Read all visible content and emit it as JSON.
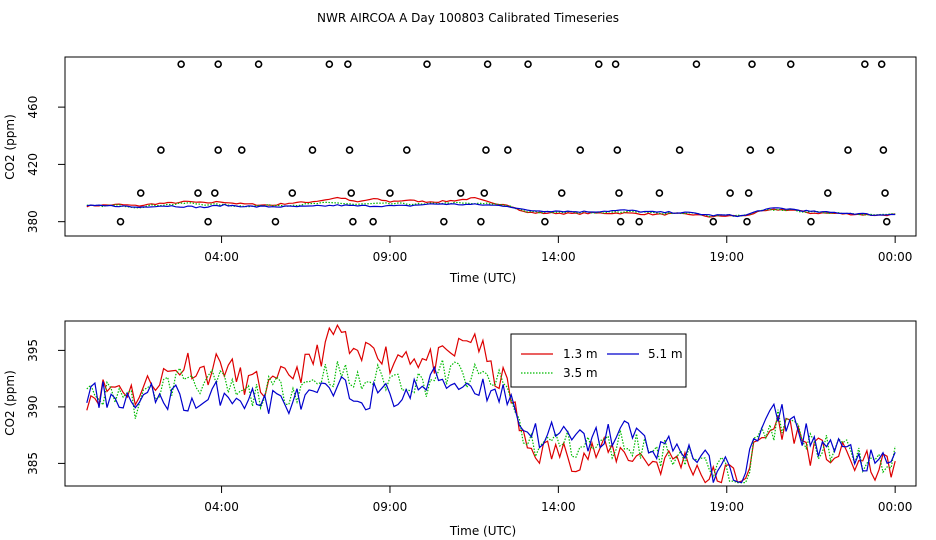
{
  "title": "NWR AIRCOA A  Day 100803  Calibrated Timeseries",
  "colors": {
    "s1": "#dd0000",
    "s2": "#00bb00",
    "s3": "#0000cc"
  },
  "chart_data": [
    {
      "type": "scatter+line",
      "name": "top",
      "xlabel": "Time (UTC)",
      "ylabel": "CO2 (ppm)",
      "x_range_hours": [
        -0.5,
        24.5
      ],
      "ylim": [
        370,
        495
      ],
      "xticks": [
        {
          "h": 4,
          "label": "04:00"
        },
        {
          "h": 9,
          "label": "09:00"
        },
        {
          "h": 14,
          "label": "14:00"
        },
        {
          "h": 19,
          "label": "19:00"
        },
        {
          "h": 24,
          "label": "00:00"
        }
      ],
      "yticks": [
        {
          "v": 380,
          "label": "380"
        },
        {
          "v": 420,
          "label": "420"
        },
        {
          "v": 460,
          "label": "460"
        }
      ],
      "points": [
        [
          1.0,
          380
        ],
        [
          1.6,
          400
        ],
        [
          2.2,
          430
        ],
        [
          2.8,
          490
        ],
        [
          3.3,
          400
        ],
        [
          3.6,
          380
        ],
        [
          3.8,
          400
        ],
        [
          3.9,
          430
        ],
        [
          3.9,
          490
        ],
        [
          4.6,
          430
        ],
        [
          5.1,
          490
        ],
        [
          5.6,
          380
        ],
        [
          6.1,
          400
        ],
        [
          6.7,
          430
        ],
        [
          7.2,
          490
        ],
        [
          7.75,
          490
        ],
        [
          7.8,
          430
        ],
        [
          7.85,
          400
        ],
        [
          7.9,
          380
        ],
        [
          8.5,
          380
        ],
        [
          9.0,
          400
        ],
        [
          9.5,
          430
        ],
        [
          10.1,
          490
        ],
        [
          10.6,
          380
        ],
        [
          11.1,
          400
        ],
        [
          11.7,
          380
        ],
        [
          11.8,
          400
        ],
        [
          11.85,
          430
        ],
        [
          11.9,
          490
        ],
        [
          12.5,
          430
        ],
        [
          13.1,
          490
        ],
        [
          13.6,
          380
        ],
        [
          14.1,
          400
        ],
        [
          14.65,
          430
        ],
        [
          15.2,
          490
        ],
        [
          15.7,
          490
        ],
        [
          15.75,
          430
        ],
        [
          15.8,
          400
        ],
        [
          15.85,
          380
        ],
        [
          16.4,
          380
        ],
        [
          17.0,
          400
        ],
        [
          17.6,
          430
        ],
        [
          18.1,
          490
        ],
        [
          18.6,
          380
        ],
        [
          19.1,
          400
        ],
        [
          19.6,
          380
        ],
        [
          19.65,
          400
        ],
        [
          19.7,
          430
        ],
        [
          19.75,
          490
        ],
        [
          20.3,
          430
        ],
        [
          20.9,
          490
        ],
        [
          21.5,
          380
        ],
        [
          22.0,
          400
        ],
        [
          22.6,
          430
        ],
        [
          23.1,
          490
        ],
        [
          23.6,
          490
        ],
        [
          23.65,
          430
        ],
        [
          23.7,
          400
        ],
        [
          23.75,
          380
        ]
      ]
    },
    {
      "type": "line",
      "name": "bottom",
      "xlabel": "Time (UTC)",
      "ylabel": "CO2 (ppm)",
      "x_range_hours": [
        -0.5,
        24.5
      ],
      "ylim": [
        383,
        397.6
      ],
      "xticks": [
        {
          "h": 4,
          "label": "04:00"
        },
        {
          "h": 9,
          "label": "09:00"
        },
        {
          "h": 14,
          "label": "14:00"
        },
        {
          "h": 19,
          "label": "19:00"
        },
        {
          "h": 24,
          "label": "00:00"
        }
      ],
      "yticks": [
        {
          "v": 385,
          "label": "385"
        },
        {
          "v": 390,
          "label": "390"
        },
        {
          "v": 395,
          "label": "395"
        }
      ],
      "legend": {
        "placement": "top-center",
        "entries": [
          "1.3 m",
          "3.5 m",
          "5.1 m"
        ]
      },
      "series": [
        {
          "name": "1.3 m",
          "color": "#dd0000",
          "anchors": [
            [
              0,
              391
            ],
            [
              0.5,
              391.5
            ],
            [
              1,
              392
            ],
            [
              1.5,
              391
            ],
            [
              2,
              392.5
            ],
            [
              2.5,
              393
            ],
            [
              3,
              394
            ],
            [
              3.5,
              393
            ],
            [
              4,
              394
            ],
            [
              4.5,
              392.5
            ],
            [
              5,
              392
            ],
            [
              5.5,
              391.5
            ],
            [
              6,
              393
            ],
            [
              6.5,
              393.5
            ],
            [
              7,
              395
            ],
            [
              7.5,
              397
            ],
            [
              8,
              393.5
            ],
            [
              8.5,
              396
            ],
            [
              9,
              394
            ],
            [
              9.5,
              395
            ],
            [
              10,
              394
            ],
            [
              10.5,
              394
            ],
            [
              11,
              395
            ],
            [
              11.5,
              396.5
            ],
            [
              12,
              393
            ],
            [
              12.5,
              392
            ],
            [
              13,
              386.5
            ],
            [
              13.5,
              386
            ],
            [
              14,
              386
            ],
            [
              14.5,
              385.5
            ],
            [
              15,
              386
            ],
            [
              15.5,
              386
            ],
            [
              16,
              386
            ],
            [
              16.5,
              385.5
            ],
            [
              17,
              385
            ],
            [
              17.5,
              385.5
            ],
            [
              18,
              385
            ],
            [
              18.5,
              383.5
            ],
            [
              19,
              384
            ],
            [
              19.5,
              384
            ],
            [
              20,
              387
            ],
            [
              20.5,
              388.5
            ],
            [
              21,
              388
            ],
            [
              21.5,
              386
            ],
            [
              22,
              386
            ],
            [
              22.5,
              385.5
            ],
            [
              23,
              385
            ],
            [
              23.5,
              384.5
            ],
            [
              24,
              385
            ]
          ]
        },
        {
          "name": "3.5 m",
          "color": "#00bb00",
          "anchors": [
            [
              0,
              391
            ],
            [
              0.5,
              391
            ],
            [
              1,
              391.5
            ],
            [
              1.5,
              390
            ],
            [
              2,
              391.5
            ],
            [
              2.5,
              392
            ],
            [
              3,
              393
            ],
            [
              3.5,
              392
            ],
            [
              4,
              392
            ],
            [
              4.5,
              391
            ],
            [
              5,
              391
            ],
            [
              5.5,
              391.5
            ],
            [
              6,
              391.5
            ],
            [
              6.5,
              392
            ],
            [
              7,
              393
            ],
            [
              7.5,
              393
            ],
            [
              8,
              392
            ],
            [
              8.5,
              392.5
            ],
            [
              9,
              392.5
            ],
            [
              9.5,
              392.5
            ],
            [
              10,
              392
            ],
            [
              10.5,
              393
            ],
            [
              11,
              393
            ],
            [
              11.5,
              392.5
            ],
            [
              12,
              392.5
            ],
            [
              12.5,
              391.5
            ],
            [
              13,
              387
            ],
            [
              13.5,
              386.5
            ],
            [
              14,
              387
            ],
            [
              14.5,
              386.5
            ],
            [
              15,
              386.5
            ],
            [
              15.5,
              386.5
            ],
            [
              16,
              387
            ],
            [
              16.5,
              386.5
            ],
            [
              17,
              386
            ],
            [
              17.5,
              386
            ],
            [
              18,
              386
            ],
            [
              18.5,
              384
            ],
            [
              19,
              384.5
            ],
            [
              19.5,
              384
            ],
            [
              20,
              387.5
            ],
            [
              20.5,
              388.5
            ],
            [
              21,
              388
            ],
            [
              21.5,
              386.5
            ],
            [
              22,
              386.5
            ],
            [
              22.5,
              386
            ],
            [
              23,
              385.5
            ],
            [
              23.5,
              384.5
            ],
            [
              24,
              385.5
            ]
          ]
        },
        {
          "name": "5.1 m",
          "color": "#0000cc",
          "anchors": [
            [
              0,
              391
            ],
            [
              0.5,
              391
            ],
            [
              1,
              391
            ],
            [
              1.5,
              390
            ],
            [
              2,
              391
            ],
            [
              2.5,
              391
            ],
            [
              3,
              390.5
            ],
            [
              3.5,
              390
            ],
            [
              4,
              391.5
            ],
            [
              4.5,
              391
            ],
            [
              5,
              390.5
            ],
            [
              5.5,
              390.5
            ],
            [
              6,
              390.5
            ],
            [
              6.5,
              390.5
            ],
            [
              7,
              391
            ],
            [
              7.5,
              391.5
            ],
            [
              8,
              391
            ],
            [
              8.5,
              391
            ],
            [
              9,
              391
            ],
            [
              9.5,
              391
            ],
            [
              10,
              392
            ],
            [
              10.5,
              392.5
            ],
            [
              11,
              392
            ],
            [
              11.5,
              392
            ],
            [
              12,
              391.5
            ],
            [
              12.5,
              391
            ],
            [
              13,
              388
            ],
            [
              13.5,
              387.5
            ],
            [
              14,
              387.5
            ],
            [
              14.5,
              387
            ],
            [
              15,
              387
            ],
            [
              15.5,
              387.5
            ],
            [
              16,
              388
            ],
            [
              16.5,
              387
            ],
            [
              17,
              386.5
            ],
            [
              17.5,
              386.5
            ],
            [
              18,
              386
            ],
            [
              18.5,
              384.5
            ],
            [
              19,
              384.5
            ],
            [
              19.5,
              384
            ],
            [
              20,
              388
            ],
            [
              20.5,
              389.5
            ],
            [
              21,
              388.5
            ],
            [
              21.5,
              387
            ],
            [
              22,
              386.5
            ],
            [
              22.5,
              386
            ],
            [
              23,
              385.5
            ],
            [
              23.5,
              384.5
            ],
            [
              24,
              385.5
            ]
          ]
        }
      ]
    }
  ]
}
